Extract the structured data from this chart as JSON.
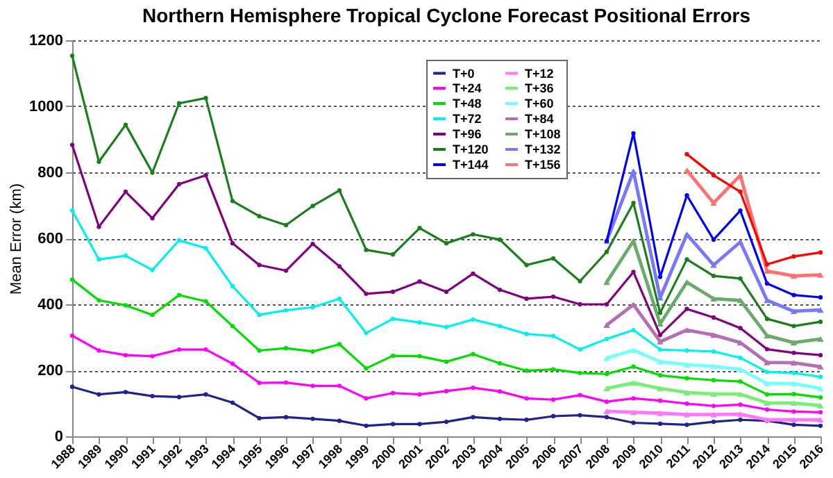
{
  "chart_data": {
    "type": "line",
    "title": "Northern Hemisphere Tropical Cyclone Forecast Positional Errors",
    "ylabel": "Mean Error (km)",
    "xlim": [
      1988,
      2016
    ],
    "xticks": [
      1988,
      1989,
      1990,
      1991,
      1992,
      1993,
      1994,
      1995,
      1996,
      1997,
      1998,
      1999,
      2000,
      2001,
      2002,
      2003,
      2004,
      2005,
      2006,
      2007,
      2008,
      2009,
      2010,
      2011,
      2012,
      2013,
      2014,
      2015,
      2016
    ],
    "ylim": [
      0,
      1200
    ],
    "yticks": [
      0,
      200,
      400,
      600,
      800,
      1000,
      1200
    ],
    "grid": "y",
    "legend": "top",
    "line_style": "solid",
    "x": [
      1988,
      1989,
      1990,
      1991,
      1992,
      1993,
      1994,
      1995,
      1996,
      1997,
      1998,
      1999,
      2000,
      2001,
      2002,
      2003,
      2004,
      2005,
      2006,
      2007,
      2008,
      2009,
      2010,
      2011,
      2012,
      2013,
      2014,
      2015,
      2016
    ],
    "series": [
      {
        "name": "T+0",
        "color": "#22228c",
        "marker": "circle",
        "values": [
          150,
          127,
          134,
          122,
          119,
          127,
          102,
          55,
          58,
          53,
          47,
          32,
          37,
          37,
          44,
          58,
          53,
          50,
          61,
          64,
          58,
          41,
          38,
          35,
          44,
          50,
          47,
          35,
          32
        ]
      },
      {
        "name": "T+12",
        "color": "#ff77ff",
        "marker": "triangle",
        "x": [
          2008,
          2009,
          2010,
          2011,
          2012,
          2013,
          2014,
          2015,
          2016
        ],
        "values": [
          76,
          73,
          70,
          66,
          66,
          67,
          50,
          50,
          50
        ]
      },
      {
        "name": "T+24",
        "color": "#ff00ff",
        "marker": "circle",
        "values": [
          305,
          260,
          246,
          243,
          263,
          263,
          220,
          162,
          163,
          153,
          153,
          115,
          131,
          127,
          137,
          147,
          136,
          115,
          111,
          125,
          105,
          115,
          108,
          99,
          92,
          96,
          81,
          75,
          73
        ]
      },
      {
        "name": "T+36",
        "color": "#77ee77",
        "marker": "triangle",
        "x": [
          2008,
          2009,
          2010,
          2011,
          2012,
          2013,
          2014,
          2015,
          2016
        ],
        "values": [
          145,
          162,
          145,
          133,
          128,
          128,
          101,
          101,
          93
        ]
      },
      {
        "name": "T+48",
        "color": "#00dd00",
        "marker": "circle",
        "values": [
          475,
          412,
          397,
          368,
          428,
          409,
          334,
          260,
          267,
          257,
          279,
          206,
          244,
          243,
          226,
          249,
          221,
          199,
          203,
          192,
          189,
          211,
          185,
          176,
          170,
          166,
          127,
          128,
          118
        ]
      },
      {
        "name": "T+60",
        "color": "#77ffff",
        "marker": "triangle",
        "x": [
          2008,
          2009,
          2010,
          2011,
          2012,
          2013,
          2014,
          2015,
          2016
        ],
        "values": [
          237,
          261,
          226,
          217,
          212,
          203,
          160,
          160,
          145
        ]
      },
      {
        "name": "T+72",
        "color": "#00f0f0",
        "marker": "circle",
        "values": [
          684,
          536,
          547,
          504,
          594,
          570,
          455,
          368,
          382,
          391,
          417,
          313,
          356,
          345,
          331,
          354,
          334,
          310,
          304,
          263,
          295,
          322,
          263,
          260,
          257,
          238,
          195,
          192,
          180
        ]
      },
      {
        "name": "T+84",
        "color": "#b36fb3",
        "marker": "triangle",
        "x": [
          2008,
          2009,
          2010,
          2011,
          2012,
          2013,
          2014,
          2015,
          2016
        ],
        "values": [
          337,
          399,
          287,
          322,
          307,
          284,
          224,
          223,
          211
        ]
      },
      {
        "name": "T+96",
        "color": "#800080",
        "marker": "circle",
        "values": [
          883,
          635,
          741,
          661,
          764,
          791,
          585,
          519,
          502,
          583,
          515,
          432,
          438,
          469,
          438,
          493,
          444,
          417,
          423,
          400,
          400,
          498,
          307,
          386,
          360,
          328,
          264,
          253,
          246
        ]
      },
      {
        "name": "T+108",
        "color": "#6aaa6a",
        "marker": "triangle",
        "x": [
          2008,
          2009,
          2010,
          2011,
          2012,
          2013,
          2014,
          2015,
          2016
        ],
        "values": [
          467,
          592,
          341,
          467,
          417,
          412,
          305,
          284,
          295
        ]
      },
      {
        "name": "T+120",
        "color": "#1a7f1a",
        "marker": "circle",
        "values": [
          1153,
          832,
          944,
          799,
          1009,
          1025,
          713,
          667,
          640,
          698,
          745,
          565,
          551,
          631,
          585,
          612,
          596,
          519,
          539,
          470,
          559,
          707,
          374,
          536,
          486,
          478,
          356,
          334,
          347
        ]
      },
      {
        "name": "T+132",
        "color": "#7777ff",
        "marker": "triangle",
        "x": [
          2008,
          2009,
          2010,
          2011,
          2012,
          2013,
          2014,
          2015,
          2016
        ],
        "values": [
          592,
          803,
          420,
          612,
          519,
          589,
          412,
          379,
          383
        ]
      },
      {
        "name": "T+144",
        "color": "#0000ff",
        "marker": "circle",
        "x": [
          2008,
          2009,
          2010,
          2011,
          2012,
          2013,
          2014,
          2015,
          2016
        ],
        "values": [
          592,
          918,
          483,
          730,
          596,
          684,
          463,
          428,
          421
        ]
      },
      {
        "name": "T+156",
        "color": "#ff7070",
        "marker": "triangle",
        "x": [
          2011,
          2012,
          2013,
          2014,
          2015,
          2016
        ],
        "values": [
          806,
          707,
          791,
          501,
          486,
          489
        ]
      },
      {
        "color": "#ff0000",
        "marker": "circle",
        "x": [
          2011,
          2012,
          2013,
          2014,
          2015,
          2016
        ],
        "values": [
          855,
          791,
          741,
          521,
          545,
          557
        ]
      }
    ]
  }
}
